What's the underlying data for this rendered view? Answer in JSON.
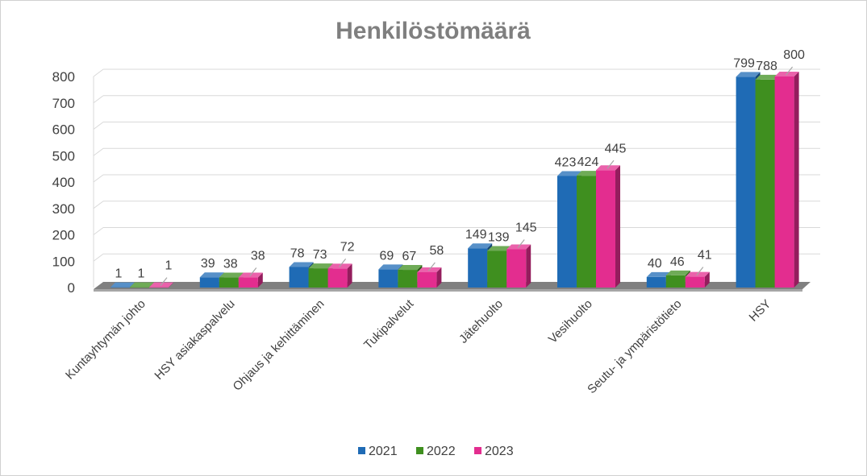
{
  "chart_data": {
    "type": "bar",
    "title": "Henkilöstömäärä",
    "categories": [
      "Kuntayhtymän johto",
      "HSY asiakaspalvelu",
      "Ohjaus ja kehittäminen",
      "Tukipalvelut",
      "Jätehuolto",
      "Vesihuolto",
      "Seutu- ja ympäristötieto",
      "HSY"
    ],
    "series": [
      {
        "name": "2021",
        "color": "#1f6bb5",
        "values": [
          1,
          39,
          78,
          69,
          149,
          423,
          40,
          799
        ]
      },
      {
        "name": "2022",
        "color": "#3f8f1f",
        "values": [
          1,
          38,
          73,
          67,
          139,
          424,
          46,
          788
        ]
      },
      {
        "name": "2023",
        "color": "#e32d8f",
        "values": [
          1,
          38,
          72,
          58,
          145,
          445,
          41,
          800
        ]
      }
    ],
    "ylim": [
      0,
      800
    ],
    "yticks": [
      "0",
      "100",
      "200",
      "300",
      "400",
      "500",
      "600",
      "700",
      "800"
    ],
    "grid": true,
    "legend_position": "bottom",
    "style": "3d-clustered-column"
  }
}
